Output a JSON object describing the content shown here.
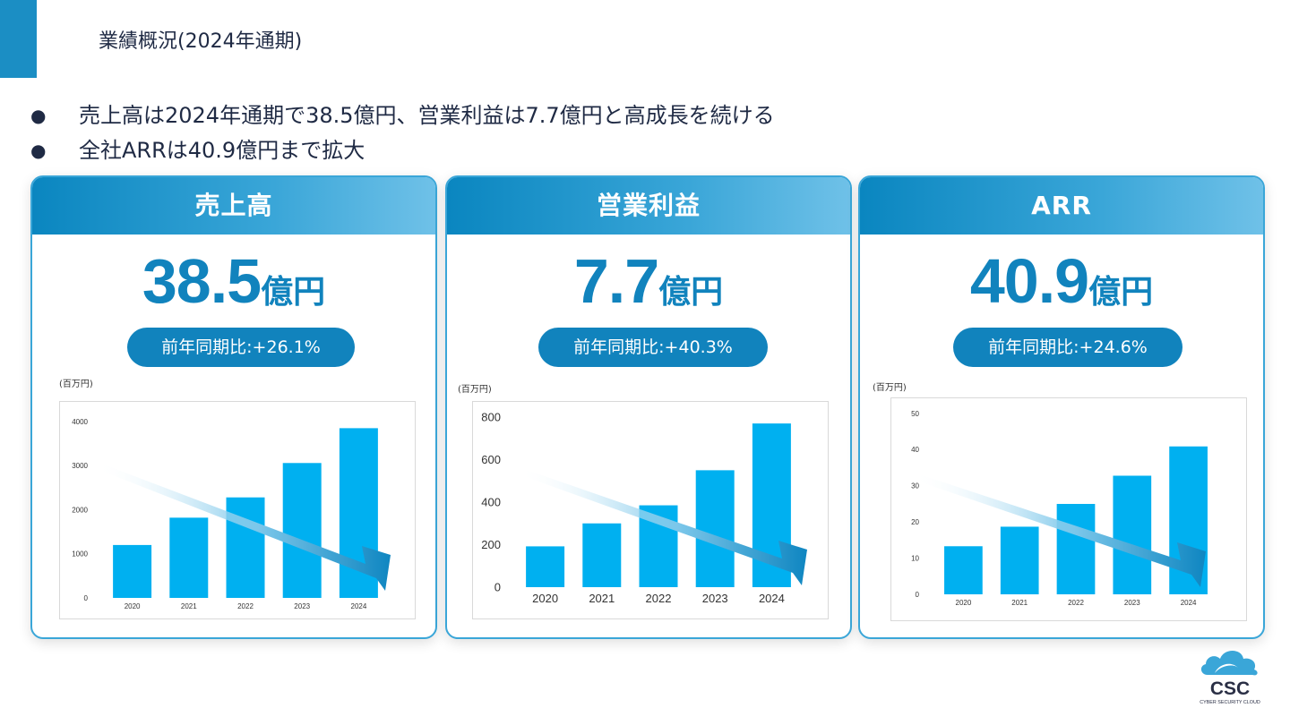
{
  "slide": {
    "title": "業績概況(2024年通期)",
    "bullets": [
      "売上高は2024年通期で38.5億円、営業利益は7.7億円と高成長を続ける",
      "全社ARRは40.9億円まで拡大"
    ],
    "bullet_symbol": "●"
  },
  "cards": [
    {
      "title": "売上高",
      "value": "38.5",
      "unit": "億円",
      "yoy": "前年同期比:+26.1%",
      "unit_label": "(百万円)"
    },
    {
      "title": "営業利益",
      "value": "7.7",
      "unit": "億円",
      "yoy": "前年同期比:+40.3%",
      "unit_label": "(百万円)"
    },
    {
      "title": "ARR",
      "value": "40.9",
      "unit": "億円",
      "yoy": "前年同期比:+24.6%",
      "unit_label": "(百万円)"
    }
  ],
  "colors": {
    "accent": "#1183bd",
    "header": "#0a86c0",
    "bar": "#00b0f0",
    "text": "#1f2a44"
  },
  "logo": {
    "text": "CSC",
    "subtext": "CYBER SECURITY CLOUD",
    "icon": "cloud-icon"
  },
  "chart_data": [
    {
      "type": "bar",
      "categories": [
        "2020",
        "2021",
        "2022",
        "2023",
        "2024"
      ],
      "values": [
        1200,
        1820,
        2280,
        3060,
        3850
      ],
      "ylim": [
        0,
        4000
      ],
      "yticks": [
        0,
        1000,
        2000,
        3000,
        4000
      ],
      "grid": false
    },
    {
      "type": "bar",
      "categories": [
        "2020",
        "2021",
        "2022",
        "2023",
        "2024"
      ],
      "values": [
        192,
        300,
        385,
        550,
        770
      ],
      "ylim": [
        0,
        800
      ],
      "yticks": [
        0,
        200,
        400,
        600,
        800
      ],
      "grid": false
    },
    {
      "type": "bar",
      "categories": [
        "2020",
        "2021",
        "2022",
        "2023",
        "2024"
      ],
      "values": [
        13.3,
        18.7,
        25.0,
        32.8,
        40.9
      ],
      "ylim": [
        0,
        50
      ],
      "yticks": [
        0,
        10,
        20,
        30,
        40,
        50
      ],
      "grid": false
    }
  ]
}
